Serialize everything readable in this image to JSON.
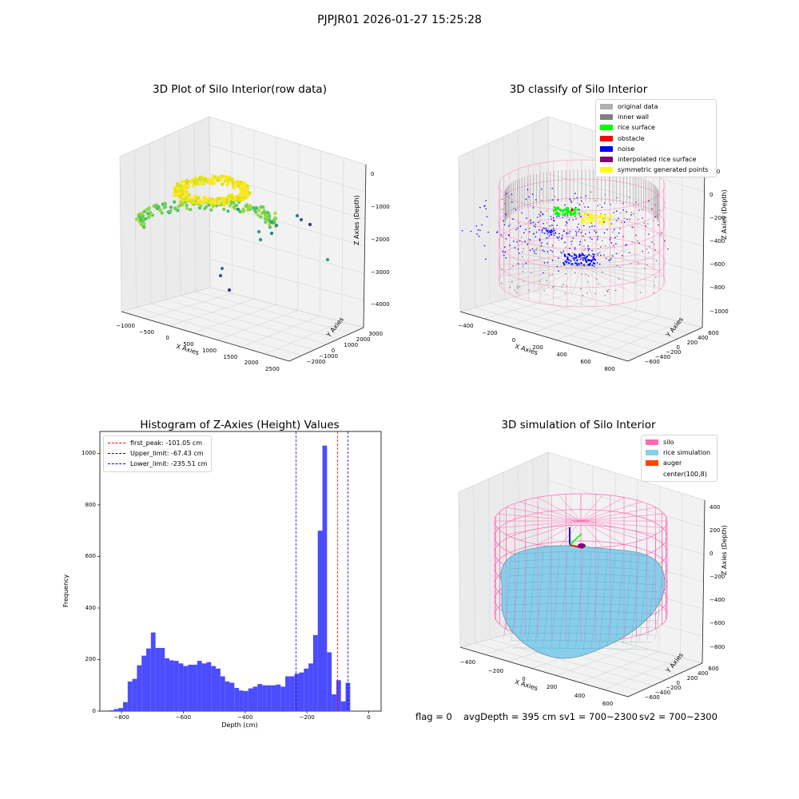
{
  "suptitle": "PJPJR01 2026-01-27 15:25:28",
  "colors": {
    "pane": "#f2f2f2",
    "pane_side": "#ebebeb",
    "grid": "#d7d7d7",
    "yellow": "#ffff00",
    "green": "#00ff00",
    "red": "#ff0000",
    "blue": "#0000ff",
    "gray": "#b0b0b0",
    "dark_gray": "#808080",
    "purple": "#800080",
    "silo_pink": "#ff69b4",
    "rice_blue": "#87ceeb",
    "auger_orange": "#ff4500",
    "hist_blue": "#4c4cff"
  },
  "footer": {
    "flag": "flag = 0",
    "avg_depth": "avgDepth = 395 cm",
    "sv1": "sv1 = 700~2300",
    "sv2": "sv2 = 700~2300"
  },
  "chart_data": [
    {
      "type": "scatter",
      "projection": "3d",
      "title": "3D Plot of Silo Interior(row data)",
      "xlabel": "X Axies",
      "ylabel": "Y Axies",
      "zlabel": "Z Axies (Depth)",
      "xticks": [
        "−1000",
        "−500",
        "0",
        "500",
        "1000",
        "1500",
        "2000",
        "2500"
      ],
      "yticks": [
        "−2000",
        "−1000",
        "0",
        "1000",
        "2000",
        "3000"
      ],
      "zticks": [
        "0",
        "−1000",
        "−2000",
        "−3000",
        "−4000"
      ],
      "xlim": [
        -1200,
        2600
      ],
      "ylim": [
        -2200,
        3300
      ],
      "zlim": [
        -4500,
        0
      ],
      "colormap": "viridis",
      "grid": true
    },
    {
      "type": "scatter",
      "projection": "3d",
      "title": "3D classify of Silo Interior",
      "xlabel": "X Axies",
      "ylabel": "Y Axies",
      "zlabel": "Z Axies (Depth)",
      "xticks": [
        "−400",
        "−200",
        "0",
        "200",
        "400",
        "600",
        "800"
      ],
      "yticks": [
        "−600",
        "−400",
        "−200",
        "0",
        "200",
        "400",
        "600"
      ],
      "zticks": [
        "200",
        "0",
        "−200",
        "−400",
        "−600",
        "−800",
        "−1000"
      ],
      "xlim": [
        -500,
        850
      ],
      "ylim": [
        -650,
        650
      ],
      "zlim": [
        -1000,
        200
      ],
      "legend_position": "upper right",
      "legend": [
        {
          "label": "original data",
          "color": "#b0b0b0"
        },
        {
          "label": "inner wall",
          "color": "#808080"
        },
        {
          "label": "rice surface",
          "color": "#00ff00"
        },
        {
          "label": "obstacle",
          "color": "#ff0000"
        },
        {
          "label": "noise",
          "color": "#0000ff"
        },
        {
          "label": "interpolated rice surface",
          "color": "#800080"
        },
        {
          "label": "symmetric generated points",
          "color": "#ffff00"
        }
      ],
      "grid": true
    },
    {
      "type": "bar",
      "subtype": "histogram",
      "title": "Histogram of Z-Axies (Height) Values",
      "xlabel": "Depth (cm)",
      "ylabel": "Frequency",
      "xlim": [
        -870,
        40
      ],
      "ylim": [
        0,
        1085
      ],
      "xticks": [
        -800,
        -600,
        -400,
        -200,
        0
      ],
      "yticks": [
        0,
        200,
        400,
        600,
        800,
        1000
      ],
      "bin_start": -840,
      "bin_width": 15,
      "values": [
        3,
        8,
        12,
        35,
        115,
        125,
        178,
        215,
        243,
        305,
        245,
        245,
        205,
        197,
        195,
        185,
        175,
        180,
        180,
        195,
        185,
        190,
        175,
        165,
        135,
        115,
        110,
        90,
        80,
        78,
        88,
        95,
        105,
        100,
        100,
        100,
        103,
        95,
        135,
        135,
        145,
        150,
        165,
        185,
        295,
        700,
        1030,
        228,
        65,
        120,
        38,
        110
      ],
      "vlines": [
        {
          "label": "first_peak: -101.05 cm",
          "x": -101.05,
          "color": "#ff0000"
        },
        {
          "label": "Upper_limit: -67.43 cm",
          "x": -67.43,
          "color": "#0000ff"
        },
        {
          "label": "Lower_limit: -235.51 cm",
          "x": -235.51,
          "color": "#0000ff"
        }
      ],
      "legend_position": "upper left",
      "grid": false
    },
    {
      "type": "area",
      "subtype": "surface",
      "projection": "3d",
      "title": "3D simulation of Silo Interior",
      "xlabel": "X Axies",
      "ylabel": "Y Axies",
      "zlabel": "Z Axies (Depth)",
      "xticks": [
        "−400",
        "−200",
        "0",
        "200",
        "400",
        "600"
      ],
      "yticks": [
        "−600",
        "−400",
        "−200",
        "0",
        "200",
        "400",
        "600"
      ],
      "zticks": [
        "400",
        "200",
        "0",
        "−200",
        "−400",
        "−600",
        "−800"
      ],
      "xlim": [
        -500,
        700
      ],
      "ylim": [
        -650,
        650
      ],
      "zlim": [
        -850,
        450
      ],
      "legend_position": "upper right",
      "legend": [
        {
          "label": "silo",
          "color": "#ff69b4"
        },
        {
          "label": "rice simulation",
          "color": "#87ceeb"
        },
        {
          "label": "auger",
          "color": "#ff4500"
        },
        {
          "label": "center(100,8)",
          "color": ""
        }
      ],
      "grid": true
    }
  ]
}
